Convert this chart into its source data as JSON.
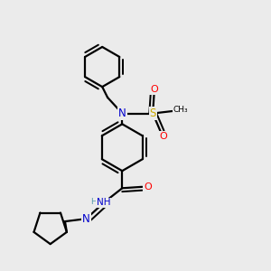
{
  "bg_color": "#ebebeb",
  "atom_colors": {
    "C": "#000000",
    "N": "#0000cc",
    "O": "#ff0000",
    "S": "#ccaa00",
    "H": "#5599aa"
  },
  "bond_color": "#000000",
  "lw": 1.6
}
